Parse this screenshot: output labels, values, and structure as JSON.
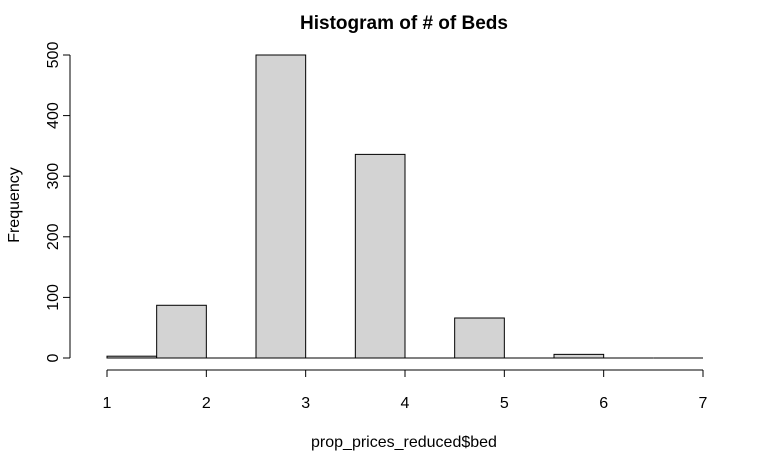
{
  "chart_data": {
    "type": "bar",
    "title": "Histogram of # of Beds",
    "xlabel": "prop_prices_reduced$bed",
    "ylabel": "Frequency",
    "bins": [
      {
        "start": 1.0,
        "end": 1.5,
        "count": 3
      },
      {
        "start": 1.5,
        "end": 2.0,
        "count": 87
      },
      {
        "start": 2.0,
        "end": 2.5,
        "count": 0
      },
      {
        "start": 2.5,
        "end": 3.0,
        "count": 500
      },
      {
        "start": 3.0,
        "end": 3.5,
        "count": 0
      },
      {
        "start": 3.5,
        "end": 4.0,
        "count": 336
      },
      {
        "start": 4.0,
        "end": 4.5,
        "count": 0
      },
      {
        "start": 4.5,
        "end": 5.0,
        "count": 66
      },
      {
        "start": 5.0,
        "end": 5.5,
        "count": 0
      },
      {
        "start": 5.5,
        "end": 6.0,
        "count": 6
      },
      {
        "start": 6.0,
        "end": 6.5,
        "count": 0
      },
      {
        "start": 6.5,
        "end": 7.0,
        "count": 0
      }
    ],
    "xlim": [
      1,
      7
    ],
    "ylim": [
      0,
      500
    ],
    "xticks": [
      "1",
      "2",
      "3",
      "4",
      "5",
      "6",
      "7"
    ],
    "yticks": [
      "0",
      "100",
      "200",
      "300",
      "400",
      "500"
    ],
    "grid": false,
    "colors": {
      "bar_fill": "#d3d3d3",
      "bar_stroke": "#000000"
    }
  }
}
